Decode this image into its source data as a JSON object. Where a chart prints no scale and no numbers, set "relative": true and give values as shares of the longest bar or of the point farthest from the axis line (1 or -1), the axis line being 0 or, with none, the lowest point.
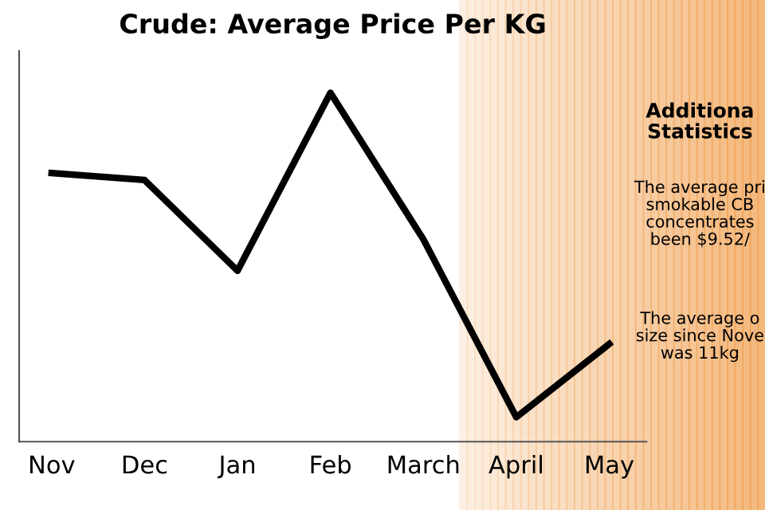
{
  "chart_data": {
    "type": "line",
    "title": "Crude: Average Price Per KG",
    "categories": [
      "Nov",
      "Dec",
      "Jan",
      "Feb",
      "March",
      "April",
      "May"
    ],
    "values": [
      0.77,
      0.75,
      0.49,
      1,
      0.58,
      0.07,
      0.28
    ],
    "color": "#000000",
    "relative": true,
    "grid": false,
    "legend": false,
    "marker": "none",
    "line_style": "solid",
    "annotations": [
      "Additiona\nStatistics",
      "The average pri\nsmokable CB\nconcentrates\nbeen $9.52/",
      "The average o\nsize since Nove\nwas 11kg"
    ]
  }
}
